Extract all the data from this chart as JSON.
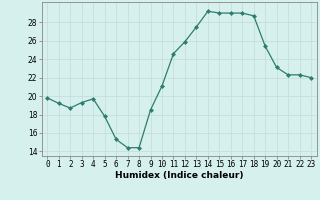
{
  "x": [
    0,
    1,
    2,
    3,
    4,
    5,
    6,
    7,
    8,
    9,
    10,
    11,
    12,
    13,
    14,
    15,
    16,
    17,
    18,
    19,
    20,
    21,
    22,
    23
  ],
  "y": [
    19.8,
    19.2,
    18.7,
    19.3,
    19.7,
    17.8,
    15.3,
    14.4,
    14.4,
    18.5,
    21.1,
    24.6,
    25.9,
    27.5,
    29.2,
    29.0,
    29.0,
    29.0,
    28.7,
    25.4,
    23.1,
    22.3,
    22.3,
    22.0
  ],
  "xlabel": "Humidex (Indice chaleur)",
  "xlim": [
    -0.5,
    23.5
  ],
  "ylim": [
    13.5,
    30.2
  ],
  "yticks": [
    14,
    16,
    18,
    20,
    22,
    24,
    26,
    28
  ],
  "xticks": [
    0,
    1,
    2,
    3,
    4,
    5,
    6,
    7,
    8,
    9,
    10,
    11,
    12,
    13,
    14,
    15,
    16,
    17,
    18,
    19,
    20,
    21,
    22,
    23
  ],
  "xtick_labels": [
    "0",
    "1",
    "2",
    "3",
    "4",
    "5",
    "6",
    "7",
    "8",
    "9",
    "10",
    "11",
    "12",
    "13",
    "14",
    "15",
    "16",
    "17",
    "18",
    "19",
    "20",
    "21",
    "22",
    "23"
  ],
  "line_color": "#2e7d6e",
  "marker": "D",
  "marker_size": 2.0,
  "bg_color": "#d6f0ee",
  "grid_color": "#c8dede",
  "axis_fontsize": 6.5,
  "tick_fontsize": 5.5
}
